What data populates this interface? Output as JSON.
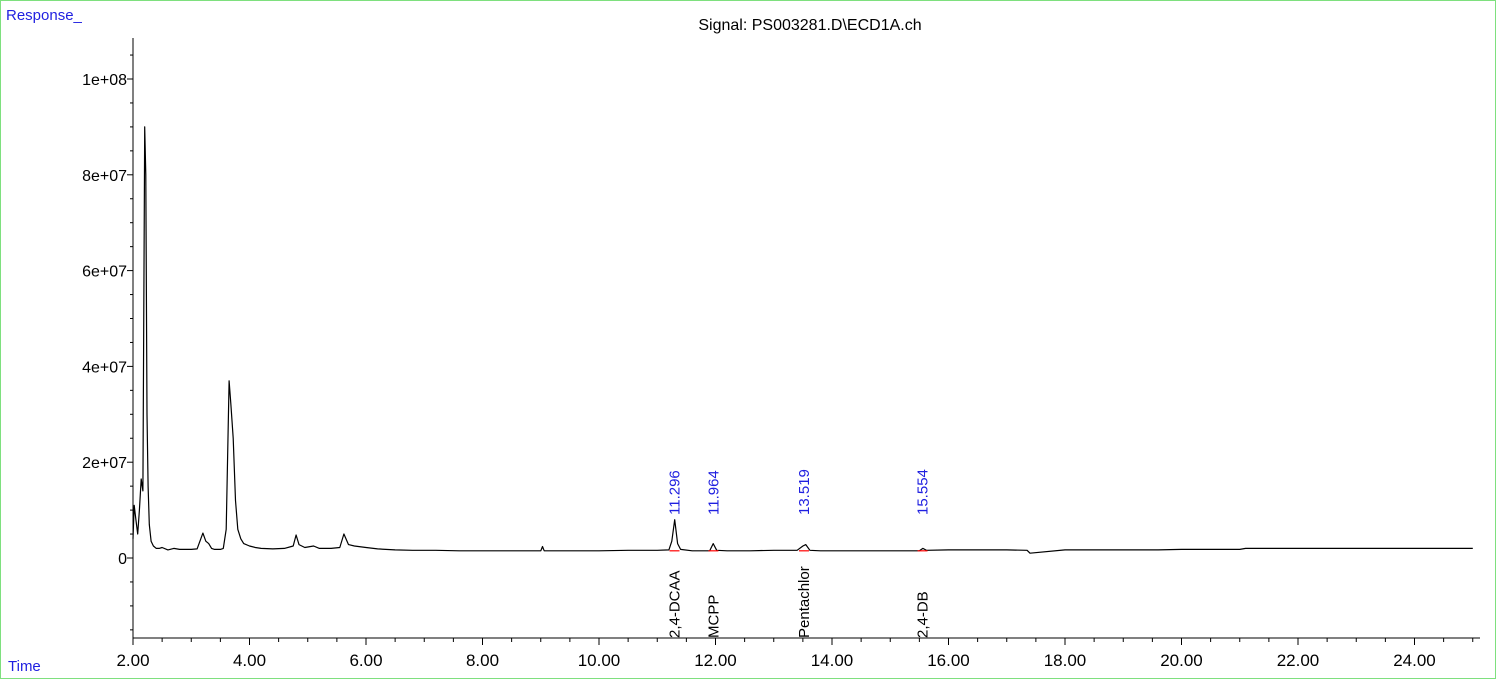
{
  "chart_data": {
    "type": "line",
    "title": "Signal: PS003281.D\\ECD1A.ch",
    "ylabel": "Response_",
    "xlabel": "Time",
    "xlim": [
      2.0,
      25.0
    ],
    "ylim": [
      -17000000,
      108000000
    ],
    "x_ticks": [
      "2.00",
      "4.00",
      "6.00",
      "8.00",
      "10.00",
      "12.00",
      "14.00",
      "16.00",
      "18.00",
      "20.00",
      "22.00",
      "24.00"
    ],
    "y_ticks": [
      "0",
      "2e+07",
      "4e+07",
      "6e+07",
      "8e+07",
      "1e+08"
    ],
    "grid": false,
    "series": [
      {
        "color": "#000000",
        "x": [
          2.0,
          2.02,
          2.05,
          2.08,
          2.11,
          2.14,
          2.17,
          2.2,
          2.22,
          2.24,
          2.26,
          2.28,
          2.31,
          2.35,
          2.4,
          2.45,
          2.5,
          2.6,
          2.7,
          2.8,
          2.9,
          3.0,
          3.1,
          3.2,
          3.25,
          3.3,
          3.35,
          3.4,
          3.45,
          3.5,
          3.55,
          3.6,
          3.65,
          3.68,
          3.72,
          3.76,
          3.8,
          3.85,
          3.9,
          4.0,
          4.1,
          4.2,
          4.4,
          4.6,
          4.75,
          4.8,
          4.85,
          4.95,
          5.1,
          5.2,
          5.4,
          5.55,
          5.62,
          5.7,
          5.8,
          6.0,
          6.2,
          6.5,
          6.8,
          7.2,
          7.6,
          8.0,
          8.5,
          9.0,
          9.03,
          9.06,
          9.5,
          10.0,
          10.5,
          11.0,
          11.2,
          11.25,
          11.3,
          11.35,
          11.4,
          11.6,
          11.9,
          11.96,
          12.02,
          12.2,
          12.6,
          13.0,
          13.4,
          13.5,
          13.55,
          13.62,
          13.8,
          14.2,
          14.8,
          15.3,
          15.5,
          15.56,
          15.62,
          16.0,
          16.5,
          17.0,
          17.35,
          17.4,
          18.0,
          19.0,
          19.6,
          20.0,
          20.5,
          21.0,
          21.1,
          22.0,
          23.0,
          24.0,
          25.0
        ],
        "y": [
          4000000,
          11000000,
          8000000,
          5000000,
          10000000,
          16500000,
          14000000,
          90000000,
          80000000,
          30000000,
          15000000,
          7000000,
          3500000,
          2500000,
          2000000,
          2000000,
          2200000,
          1700000,
          2000000,
          1800000,
          1800000,
          1800000,
          1900000,
          5200000,
          3500000,
          3000000,
          2000000,
          1800000,
          1800000,
          1800000,
          2000000,
          6000000,
          37000000,
          32000000,
          25000000,
          12000000,
          6000000,
          4000000,
          3000000,
          2500000,
          2200000,
          2000000,
          1900000,
          2000000,
          2500000,
          4800000,
          2800000,
          2200000,
          2500000,
          2000000,
          2000000,
          2200000,
          5000000,
          2800000,
          2500000,
          2200000,
          1900000,
          1700000,
          1600000,
          1600000,
          1500000,
          1500000,
          1500000,
          1500000,
          2400000,
          1500000,
          1500000,
          1500000,
          1600000,
          1600000,
          1700000,
          3500000,
          8000000,
          3000000,
          1800000,
          1500000,
          1500000,
          3000000,
          1600000,
          1500000,
          1500000,
          1600000,
          1600000,
          2500000,
          2800000,
          1600000,
          1500000,
          1500000,
          1500000,
          1500000,
          1500000,
          2000000,
          1600000,
          1700000,
          1700000,
          1700000,
          1600000,
          1000000,
          1700000,
          1700000,
          1700000,
          1800000,
          1800000,
          1800000,
          2000000,
          2000000,
          2000000,
          2000000,
          2000000
        ]
      }
    ],
    "peak_labels": [
      {
        "time": 11.296,
        "rt_label": "11.296",
        "name": "2,4-DCAA"
      },
      {
        "time": 11.964,
        "rt_label": "11.964",
        "name": "MCPP"
      },
      {
        "time": 13.519,
        "rt_label": "13.519",
        "name": "Pentachlor"
      },
      {
        "time": 15.554,
        "rt_label": "15.554",
        "name": "2,4-DB"
      }
    ],
    "colors": {
      "trace": "#000000",
      "rt_label": "#1f1fe0",
      "compound_label": "#000000",
      "axis_label": "#1f1fe0",
      "baseline_marker": "#ff0000",
      "frame": "#7ee07e"
    }
  }
}
